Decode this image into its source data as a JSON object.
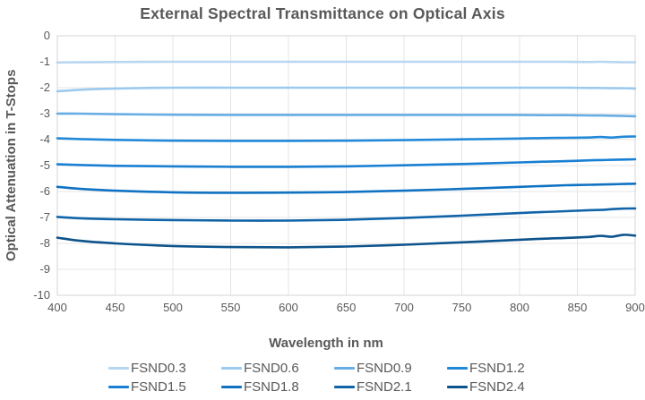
{
  "chart": {
    "title": "External Spectral Transmittance on Optical Axis",
    "x_axis_title": "Wavelength in nm",
    "y_axis_title": "Optical Attenuation in T-Stops"
  },
  "colors": {
    "title_text": "#595959",
    "tick_text": "#595959",
    "grid": "#E4E4E4",
    "plot_border": "#D6D6D6",
    "background": "#FFFFFF"
  },
  "chart_data": {
    "type": "line",
    "title": "External Spectral Transmittance on Optical Axis",
    "xlabel": "Wavelength in nm",
    "ylabel": "Optical Attenuation in T-Stops",
    "xlim": [
      400,
      900
    ],
    "ylim": [
      -10,
      0
    ],
    "xticks": [
      400,
      450,
      500,
      550,
      600,
      650,
      700,
      750,
      800,
      850,
      900
    ],
    "yticks": [
      0,
      -1,
      -2,
      -3,
      -4,
      -5,
      -6,
      -7,
      -8,
      -9,
      -10
    ],
    "grid": true,
    "legend_position": "bottom",
    "x": [
      400,
      420,
      450,
      500,
      550,
      600,
      650,
      700,
      750,
      800,
      820,
      840,
      860,
      870,
      880,
      890,
      900
    ],
    "series": [
      {
        "name": "FSND0.3",
        "color": "#B7D6F0",
        "values": [
          -1.03,
          -1.02,
          -1.01,
          -1.0,
          -1.0,
          -1.0,
          -1.0,
          -1.0,
          -1.0,
          -1.0,
          -1.0,
          -1.0,
          -1.01,
          -1.0,
          -1.01,
          -1.02,
          -1.02
        ]
      },
      {
        "name": "FSND0.6",
        "color": "#9CCAEE",
        "values": [
          -2.14,
          -2.08,
          -2.03,
          -2.0,
          -2.0,
          -2.0,
          -2.0,
          -2.0,
          -2.0,
          -2.0,
          -2.0,
          -2.0,
          -2.01,
          -2.01,
          -2.02,
          -2.02,
          -2.03
        ]
      },
      {
        "name": "FSND0.9",
        "color": "#67ADE4",
        "values": [
          -3.0,
          -3.0,
          -3.02,
          -3.04,
          -3.05,
          -3.05,
          -3.05,
          -3.05,
          -3.05,
          -3.05,
          -3.06,
          -3.06,
          -3.07,
          -3.07,
          -3.08,
          -3.09,
          -3.1
        ]
      },
      {
        "name": "FSND1.2",
        "color": "#2189D8",
        "values": [
          -3.95,
          -3.98,
          -4.01,
          -4.04,
          -4.05,
          -4.05,
          -4.04,
          -4.02,
          -3.99,
          -3.96,
          -3.94,
          -3.93,
          -3.92,
          -3.9,
          -3.92,
          -3.89,
          -3.88
        ]
      },
      {
        "name": "FSND1.5",
        "color": "#187FD2",
        "values": [
          -4.95,
          -4.98,
          -5.01,
          -5.03,
          -5.05,
          -5.05,
          -5.03,
          -4.99,
          -4.94,
          -4.88,
          -4.85,
          -4.83,
          -4.8,
          -4.79,
          -4.78,
          -4.77,
          -4.76
        ]
      },
      {
        "name": "FSND1.8",
        "color": "#0F72C2",
        "values": [
          -5.82,
          -5.9,
          -5.97,
          -6.03,
          -6.05,
          -6.04,
          -6.02,
          -5.97,
          -5.9,
          -5.82,
          -5.79,
          -5.76,
          -5.74,
          -5.73,
          -5.72,
          -5.71,
          -5.7
        ]
      },
      {
        "name": "FSND2.1",
        "color": "#1164A8",
        "values": [
          -6.98,
          -7.03,
          -7.07,
          -7.1,
          -7.12,
          -7.12,
          -7.09,
          -7.02,
          -6.93,
          -6.83,
          -6.79,
          -6.76,
          -6.72,
          -6.71,
          -6.68,
          -6.66,
          -6.65
        ]
      },
      {
        "name": "FSND2.4",
        "color": "#0D538C",
        "values": [
          -7.78,
          -7.9,
          -8.0,
          -8.1,
          -8.14,
          -8.15,
          -8.12,
          -8.05,
          -7.96,
          -7.86,
          -7.82,
          -7.79,
          -7.75,
          -7.71,
          -7.74,
          -7.67,
          -7.7
        ]
      }
    ]
  }
}
